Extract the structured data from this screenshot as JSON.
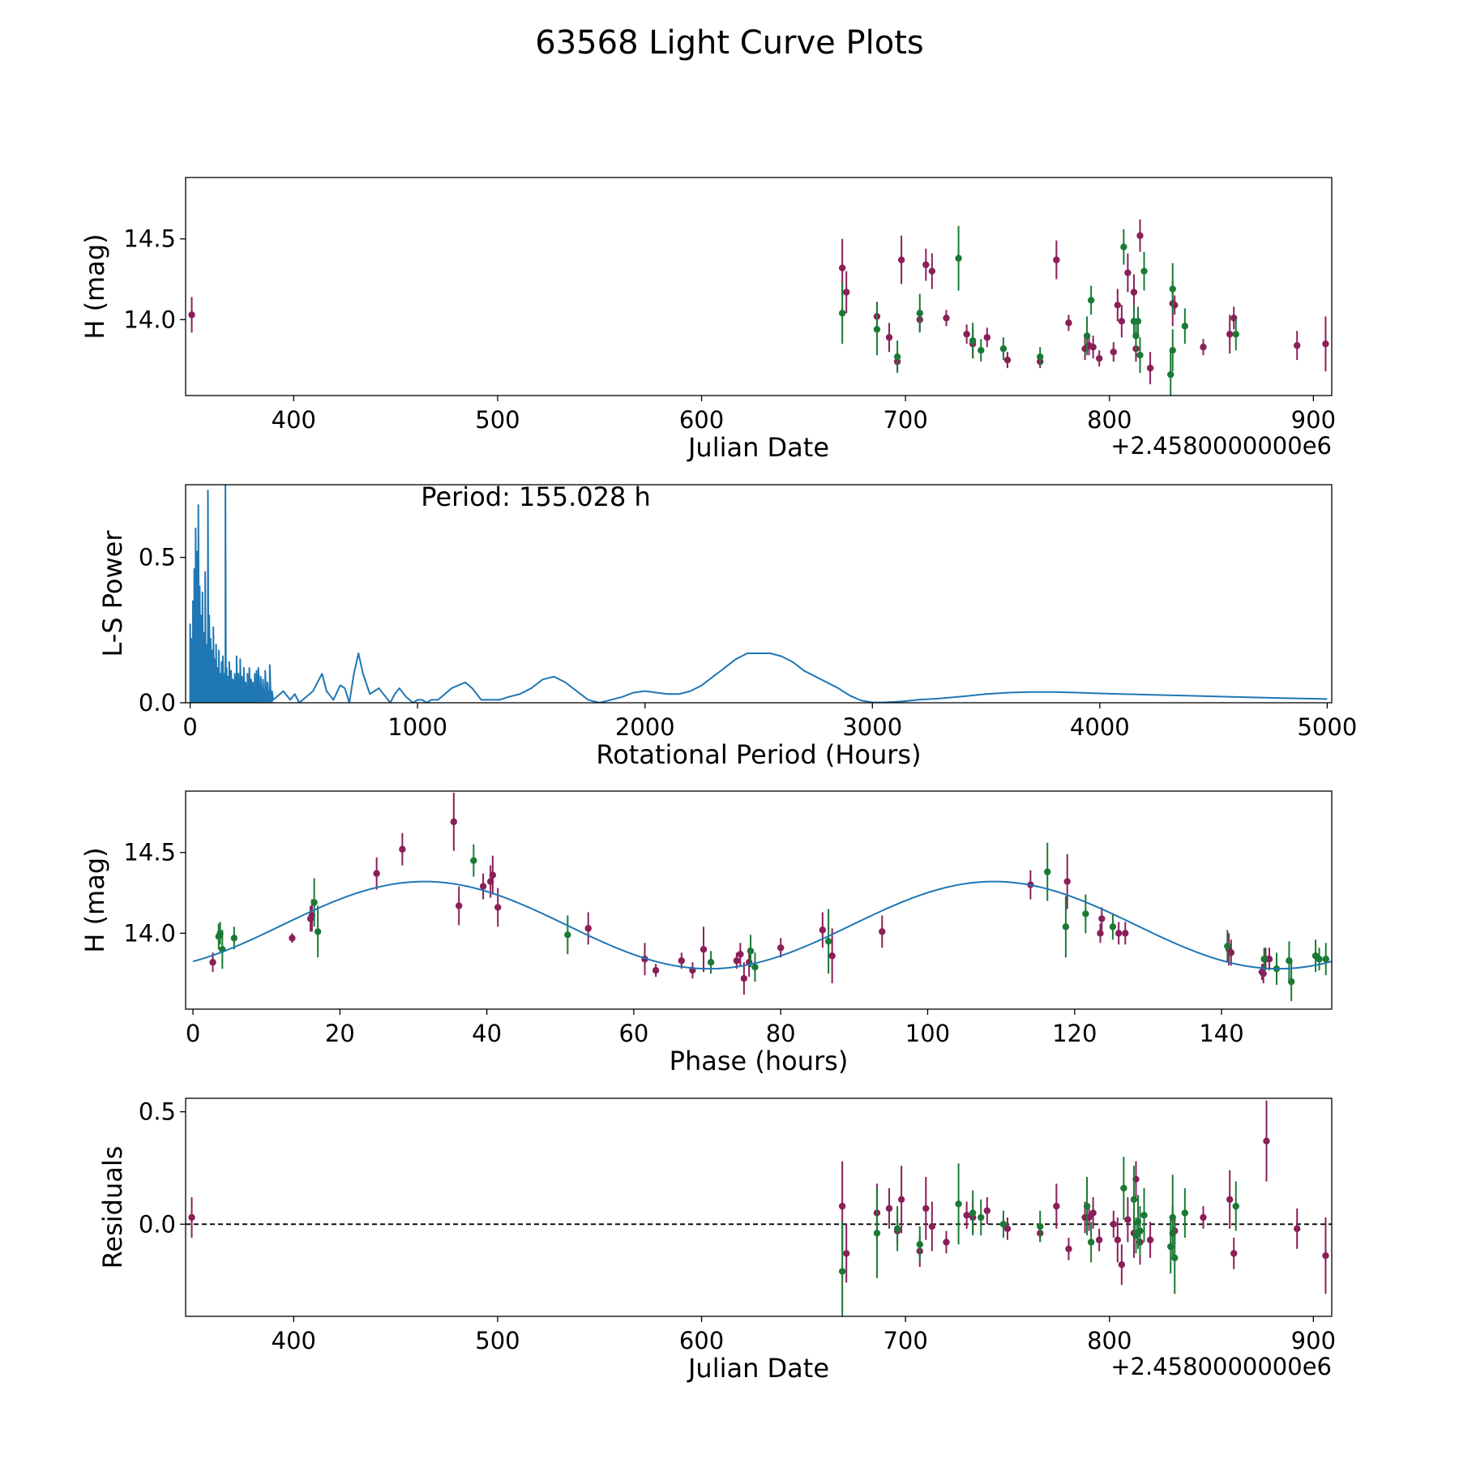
{
  "figure_title": "63568 Light Curve Plots",
  "colors": {
    "series_a": "#8a1f5a",
    "series_b": "#1a7a35",
    "curve": "#1f77b4",
    "axis": "#000000"
  },
  "chart_data": [
    {
      "type": "scatter",
      "id": "lightcurve",
      "xlabel": "Julian Date",
      "ylabel": "H (mag)",
      "offset_label": "+2.4580000000e6",
      "xlim": [
        347,
        909
      ],
      "ylim": [
        13.53,
        14.88
      ],
      "xticks": [
        400,
        500,
        600,
        700,
        800,
        900
      ],
      "yticks": [
        14.0,
        14.5
      ],
      "ytick_labels": [
        "14.0",
        "14.5"
      ],
      "series": [
        {
          "name": "purple",
          "color": "#8a1f5a",
          "x": [
            350,
            669,
            671,
            686,
            692,
            696,
            698,
            707,
            710,
            713,
            720,
            730,
            733,
            740,
            750,
            766,
            774,
            780,
            788,
            790,
            792,
            795,
            802,
            804,
            806,
            809,
            812,
            813,
            815,
            820,
            831,
            832,
            846,
            859,
            861,
            892,
            906
          ],
          "y": [
            14.03,
            14.32,
            14.17,
            14.02,
            13.89,
            13.74,
            14.37,
            14.0,
            14.34,
            14.3,
            14.01,
            13.91,
            13.85,
            13.89,
            13.75,
            13.74,
            14.37,
            13.98,
            13.82,
            13.84,
            13.83,
            13.76,
            13.8,
            14.09,
            13.99,
            14.29,
            14.17,
            13.82,
            14.52,
            13.7,
            14.1,
            14.09,
            13.83,
            13.91,
            14.01,
            13.84,
            13.85
          ],
          "err": [
            0.11,
            0.18,
            0.13,
            0.09,
            0.09,
            0.06,
            0.15,
            0.07,
            0.1,
            0.11,
            0.05,
            0.06,
            0.09,
            0.06,
            0.05,
            0.04,
            0.12,
            0.05,
            0.07,
            0.06,
            0.07,
            0.05,
            0.06,
            0.1,
            0.1,
            0.12,
            0.11,
            0.08,
            0.1,
            0.1,
            0.14,
            0.06,
            0.05,
            0.12,
            0.07,
            0.09,
            0.17
          ]
        },
        {
          "name": "green",
          "color": "#1a7a35",
          "x": [
            669,
            686,
            696,
            707,
            726,
            733,
            737,
            748,
            766,
            789,
            791,
            807,
            812,
            813,
            814,
            815,
            817,
            830,
            831,
            831,
            837,
            862
          ],
          "y": [
            14.04,
            13.94,
            13.77,
            14.04,
            14.38,
            13.87,
            13.81,
            13.82,
            13.77,
            13.9,
            14.12,
            14.45,
            13.99,
            13.9,
            13.99,
            13.78,
            14.3,
            13.66,
            13.81,
            14.19,
            13.96,
            13.91
          ],
          "err": [
            0.19,
            0.16,
            0.1,
            0.12,
            0.2,
            0.11,
            0.07,
            0.07,
            0.06,
            0.12,
            0.09,
            0.11,
            0.1,
            0.1,
            0.09,
            0.11,
            0.12,
            0.14,
            0.13,
            0.16,
            0.11,
            0.1
          ]
        }
      ]
    },
    {
      "type": "line",
      "id": "periodogram",
      "xlabel": "Rotational Period (Hours)",
      "ylabel": "L-S Power",
      "annotation": "Period: 155.028 h",
      "xlim": [
        -20,
        5020
      ],
      "ylim": [
        0.0,
        0.75
      ],
      "xticks": [
        0,
        1000,
        2000,
        3000,
        4000,
        5000
      ],
      "yticks": [
        0.0,
        0.5
      ],
      "ytick_labels": [
        "0.0",
        "0.5"
      ],
      "x": [
        380,
        410,
        440,
        460,
        480,
        510,
        540,
        560,
        580,
        600,
        630,
        660,
        680,
        700,
        720,
        740,
        760,
        790,
        810,
        830,
        860,
        880,
        900,
        920,
        950,
        980,
        1000,
        1020,
        1040,
        1060,
        1090,
        1120,
        1150,
        1180,
        1210,
        1240,
        1280,
        1320,
        1360,
        1400,
        1450,
        1500,
        1550,
        1600,
        1650,
        1700,
        1750,
        1800,
        1850,
        1900,
        1950,
        2000,
        2050,
        2100,
        2150,
        2200,
        2250,
        2300,
        2350,
        2400,
        2450,
        2500,
        2550,
        2600,
        2650,
        2700,
        2750,
        2800,
        2850,
        2900,
        2950,
        3000,
        3050,
        3100,
        3150,
        3200,
        3300,
        3400,
        3500,
        3600,
        3700,
        3800,
        3900,
        4000,
        4200,
        4400,
        4600,
        4800,
        5000
      ],
      "y": [
        0.02,
        0.04,
        0.01,
        0.03,
        0.0,
        0.02,
        0.04,
        0.07,
        0.1,
        0.04,
        0.01,
        0.06,
        0.05,
        0.0,
        0.1,
        0.17,
        0.1,
        0.03,
        0.04,
        0.05,
        0.02,
        0.0,
        0.03,
        0.05,
        0.02,
        0.0,
        0.01,
        0.01,
        0.0,
        0.01,
        0.01,
        0.03,
        0.05,
        0.06,
        0.07,
        0.05,
        0.01,
        0.01,
        0.01,
        0.02,
        0.03,
        0.05,
        0.08,
        0.09,
        0.07,
        0.04,
        0.01,
        0.0,
        0.01,
        0.02,
        0.035,
        0.04,
        0.035,
        0.03,
        0.03,
        0.04,
        0.06,
        0.09,
        0.12,
        0.15,
        0.17,
        0.17,
        0.17,
        0.16,
        0.14,
        0.11,
        0.09,
        0.07,
        0.05,
        0.025,
        0.008,
        0.001,
        0.001,
        0.003,
        0.006,
        0.01,
        0.015,
        0.022,
        0.03,
        0.035,
        0.037,
        0.037,
        0.035,
        0.032,
        0.028,
        0.024,
        0.02,
        0.016,
        0.013
      ],
      "spikes_x": [
        0,
        6,
        12,
        18,
        24,
        30,
        36,
        42,
        48,
        54,
        60,
        66,
        72,
        78,
        84,
        90,
        96,
        102,
        108,
        114,
        120,
        126,
        132,
        138,
        144,
        150,
        155,
        160,
        166,
        172,
        180,
        188,
        196,
        204,
        212,
        220,
        228,
        236,
        244,
        252,
        260,
        268,
        276,
        284,
        292,
        300,
        310,
        320,
        330,
        340,
        350,
        360
      ],
      "spikes_y": [
        0.27,
        0.22,
        0.35,
        0.46,
        0.6,
        0.52,
        0.68,
        0.4,
        0.3,
        0.38,
        0.24,
        0.45,
        0.2,
        0.73,
        0.3,
        0.22,
        0.18,
        0.26,
        0.15,
        0.2,
        0.12,
        0.18,
        0.1,
        0.14,
        0.16,
        0.1,
        0.75,
        0.12,
        0.09,
        0.14,
        0.11,
        0.08,
        0.1,
        0.16,
        0.1,
        0.15,
        0.09,
        0.12,
        0.07,
        0.1,
        0.12,
        0.08,
        0.07,
        0.1,
        0.11,
        0.12,
        0.09,
        0.08,
        0.11,
        0.07,
        0.13,
        0.04
      ]
    },
    {
      "type": "scatter",
      "id": "phased",
      "xlabel": "Phase (hours)",
      "ylabel": "H (mag)",
      "xlim": [
        -1,
        155
      ],
      "ylim": [
        13.53,
        14.88
      ],
      "xticks": [
        0,
        20,
        40,
        60,
        80,
        100,
        120,
        140
      ],
      "yticks": [
        14.0,
        14.5
      ],
      "ytick_labels": [
        "14.0",
        "14.5"
      ],
      "model": {
        "mean": 14.05,
        "amplitude": 0.27,
        "phase_peak": 31.5,
        "half_period": 77.5,
        "x_max": 155
      },
      "series": [
        {
          "name": "purple",
          "color": "#8a1f5a",
          "x": [
            2.7,
            13.5,
            16,
            16.2,
            25,
            28.5,
            35.5,
            36.2,
            39.5,
            40.5,
            40.8,
            41.5,
            53.8,
            61.5,
            63,
            66.5,
            68,
            69.5,
            74,
            74.5,
            75,
            75.7,
            80,
            85.7,
            87,
            93.8,
            114,
            119,
            123.5,
            123.7,
            126,
            126.9,
            141,
            141.3,
            145.5,
            145.7,
            146,
            146.5
          ],
          "y": [
            13.82,
            13.97,
            14.09,
            14.11,
            14.37,
            14.52,
            14.69,
            14.17,
            14.29,
            14.32,
            14.36,
            14.16,
            14.03,
            13.84,
            13.77,
            13.83,
            13.77,
            13.9,
            13.83,
            13.87,
            13.72,
            13.82,
            13.91,
            14.02,
            13.86,
            14.01,
            14.3,
            14.32,
            14.0,
            14.09,
            14.0,
            14.0,
            13.9,
            13.88,
            13.76,
            13.75,
            13.84,
            13.84
          ],
          "err": [
            0.06,
            0.03,
            0.08,
            0.1,
            0.1,
            0.1,
            0.18,
            0.12,
            0.08,
            0.1,
            0.12,
            0.12,
            0.1,
            0.1,
            0.04,
            0.05,
            0.05,
            0.14,
            0.05,
            0.07,
            0.1,
            0.09,
            0.06,
            0.11,
            0.17,
            0.1,
            0.09,
            0.17,
            0.06,
            0.07,
            0.07,
            0.07,
            0.1,
            0.08,
            0.05,
            0.06,
            0.07,
            0.07
          ]
        },
        {
          "name": "green",
          "color": "#1a7a35",
          "x": [
            3.5,
            3.7,
            4,
            5.6,
            16.5,
            17,
            38.2,
            51,
            70.5,
            75.9,
            76.5,
            86.5,
            116.3,
            118.8,
            121.5,
            125.2,
            140.8,
            145.8,
            147.5,
            149.2,
            149.5,
            152.8,
            153.3,
            154.2
          ],
          "y": [
            13.98,
            14.0,
            13.9,
            13.97,
            14.19,
            14.01,
            14.45,
            13.99,
            13.82,
            13.89,
            13.79,
            13.95,
            14.38,
            14.04,
            14.12,
            14.04,
            13.92,
            13.84,
            13.78,
            13.83,
            13.7,
            13.86,
            13.84,
            13.84
          ],
          "err": [
            0.08,
            0.07,
            0.12,
            0.07,
            0.15,
            0.16,
            0.1,
            0.12,
            0.07,
            0.1,
            0.09,
            0.2,
            0.18,
            0.19,
            0.12,
            0.08,
            0.1,
            0.07,
            0.1,
            0.12,
            0.12,
            0.1,
            0.07,
            0.1
          ]
        }
      ]
    },
    {
      "type": "scatter",
      "id": "residuals",
      "xlabel": "Julian Date",
      "ylabel": "Residuals",
      "offset_label": "+2.4580000000e6",
      "xlim": [
        347,
        909
      ],
      "ylim": [
        -0.41,
        0.56
      ],
      "xticks": [
        400,
        500,
        600,
        700,
        800,
        900
      ],
      "yticks": [
        0.0,
        0.5
      ],
      "ytick_labels": [
        "0.0",
        "0.5"
      ],
      "reference_line": 0.0,
      "series": [
        {
          "name": "purple",
          "color": "#8a1f5a",
          "x": [
            350,
            669,
            671,
            686,
            692,
            696,
            698,
            707,
            710,
            713,
            720,
            730,
            733,
            740,
            750,
            766,
            774,
            780,
            788,
            790,
            792,
            795,
            802,
            804,
            806,
            809,
            812,
            813,
            815,
            820,
            831,
            832,
            846,
            859,
            861,
            877,
            892,
            906
          ],
          "y": [
            0.03,
            0.08,
            -0.13,
            0.05,
            0.07,
            -0.03,
            0.11,
            -0.12,
            0.07,
            -0.01,
            -0.08,
            0.04,
            0.03,
            0.06,
            -0.02,
            -0.04,
            0.08,
            -0.11,
            0.03,
            0.03,
            0.05,
            -0.07,
            0.0,
            -0.07,
            -0.18,
            0.02,
            -0.04,
            0.2,
            -0.08,
            -0.07,
            -0.04,
            -0.03,
            0.03,
            0.11,
            -0.13,
            0.37,
            -0.02,
            -0.14
          ],
          "err": [
            0.09,
            0.2,
            0.13,
            0.13,
            0.09,
            0.06,
            0.15,
            0.07,
            0.14,
            0.11,
            0.05,
            0.06,
            0.07,
            0.06,
            0.05,
            0.04,
            0.1,
            0.05,
            0.07,
            0.06,
            0.07,
            0.05,
            0.06,
            0.1,
            0.09,
            0.1,
            0.11,
            0.08,
            0.1,
            0.08,
            0.12,
            0.06,
            0.05,
            0.13,
            0.07,
            0.18,
            0.09,
            0.17
          ]
        },
        {
          "name": "green",
          "color": "#1a7a35",
          "x": [
            669,
            686,
            696,
            707,
            726,
            733,
            737,
            748,
            766,
            789,
            791,
            807,
            812,
            813,
            814,
            815,
            817,
            830,
            831,
            832,
            837,
            862
          ],
          "y": [
            -0.21,
            -0.04,
            -0.02,
            -0.09,
            0.09,
            0.05,
            0.03,
            0.0,
            -0.01,
            0.08,
            -0.08,
            0.16,
            0.11,
            -0.05,
            0.01,
            -0.03,
            0.04,
            -0.1,
            0.03,
            -0.15,
            0.05,
            0.08
          ],
          "err": [
            0.22,
            0.2,
            0.1,
            0.08,
            0.18,
            0.1,
            0.08,
            0.06,
            0.07,
            0.13,
            0.09,
            0.14,
            0.15,
            0.08,
            0.12,
            0.11,
            0.12,
            0.12,
            0.19,
            0.16,
            0.11,
            0.11
          ]
        }
      ]
    }
  ]
}
